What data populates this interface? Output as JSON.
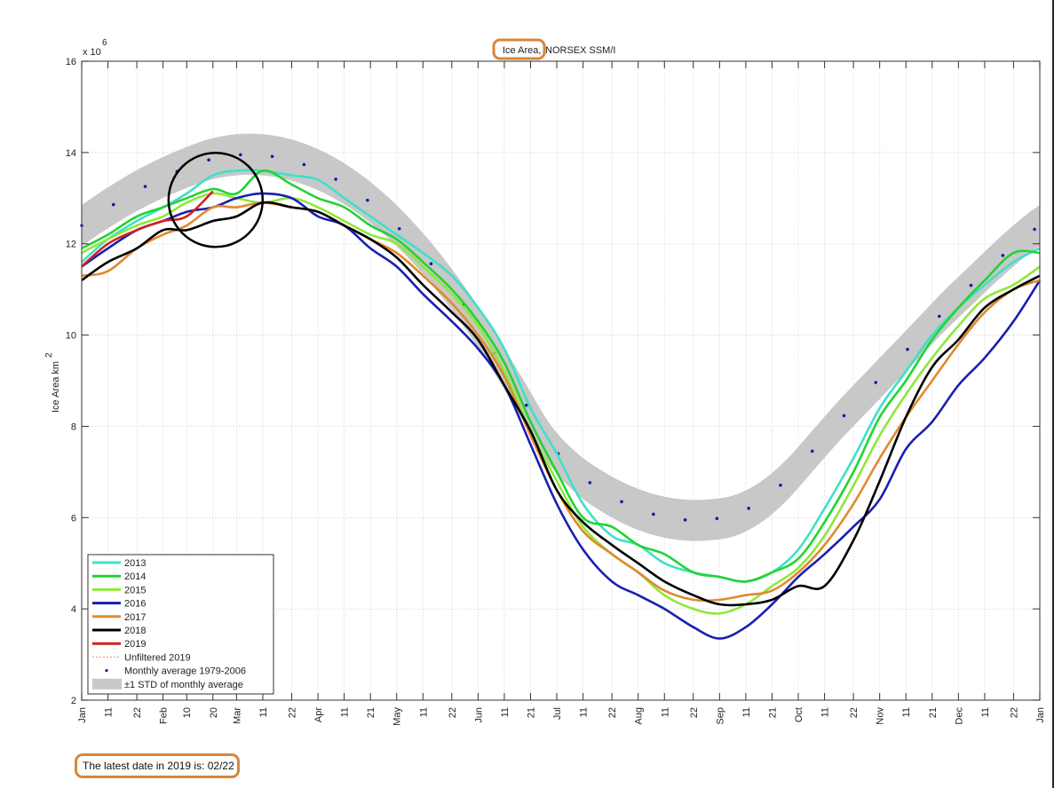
{
  "chart_data": {
    "type": "line",
    "title_highlight": "Ice Area,",
    "title_rest": "NORSEX SSM/I",
    "ylabel": "Ice Area km",
    "ylabel_sup": "2",
    "y_multiplier_base": "x 10",
    "y_multiplier_exp": "6",
    "ylim": [
      2,
      16
    ],
    "yticks": [
      2,
      4,
      6,
      8,
      10,
      12,
      14,
      16
    ],
    "xlim_day_of_year": [
      1,
      366
    ],
    "grid": true,
    "xticks": [
      {
        "day": 1,
        "label": "Jan"
      },
      {
        "day": 11,
        "label": "11"
      },
      {
        "day": 22,
        "label": "22"
      },
      {
        "day": 32,
        "label": "Feb"
      },
      {
        "day": 41,
        "label": "10"
      },
      {
        "day": 51,
        "label": "20"
      },
      {
        "day": 60,
        "label": "Mar"
      },
      {
        "day": 70,
        "label": "11"
      },
      {
        "day": 81,
        "label": "22"
      },
      {
        "day": 91,
        "label": "Apr"
      },
      {
        "day": 101,
        "label": "11"
      },
      {
        "day": 111,
        "label": "21"
      },
      {
        "day": 121,
        "label": "May"
      },
      {
        "day": 131,
        "label": "11"
      },
      {
        "day": 142,
        "label": "22"
      },
      {
        "day": 152,
        "label": "Jun"
      },
      {
        "day": 162,
        "label": "11"
      },
      {
        "day": 172,
        "label": "21"
      },
      {
        "day": 182,
        "label": "Jul"
      },
      {
        "day": 192,
        "label": "11"
      },
      {
        "day": 203,
        "label": "22"
      },
      {
        "day": 213,
        "label": "Aug"
      },
      {
        "day": 223,
        "label": "11"
      },
      {
        "day": 234,
        "label": "22"
      },
      {
        "day": 244,
        "label": "Sep"
      },
      {
        "day": 254,
        "label": "11"
      },
      {
        "day": 264,
        "label": "21"
      },
      {
        "day": 274,
        "label": "Oct"
      },
      {
        "day": 284,
        "label": "11"
      },
      {
        "day": 295,
        "label": "22"
      },
      {
        "day": 305,
        "label": "Nov"
      },
      {
        "day": 315,
        "label": "11"
      },
      {
        "day": 325,
        "label": "21"
      },
      {
        "day": 335,
        "label": "Dec"
      },
      {
        "day": 345,
        "label": "11"
      },
      {
        "day": 356,
        "label": "22"
      },
      {
        "day": 366,
        "label": "Jan"
      }
    ],
    "x_days": [
      1,
      11,
      22,
      32,
      41,
      51,
      60,
      70,
      81,
      91,
      101,
      111,
      121,
      131,
      142,
      152,
      162,
      172,
      182,
      192,
      203,
      213,
      223,
      234,
      244,
      254,
      264,
      274,
      284,
      295,
      305,
      315,
      325,
      335,
      345,
      356,
      366
    ],
    "series": [
      {
        "name": "2013",
        "color": "#3fe0c8",
        "values": [
          11.6,
          12.1,
          12.5,
          12.8,
          13.1,
          13.5,
          13.6,
          13.6,
          13.5,
          13.4,
          13.0,
          12.6,
          12.2,
          11.8,
          11.3,
          10.6,
          9.7,
          8.4,
          7.4,
          6.3,
          5.6,
          5.4,
          5.0,
          4.8,
          4.7,
          4.6,
          4.8,
          5.3,
          6.2,
          7.3,
          8.4,
          9.2,
          10.0,
          10.6,
          11.1,
          11.6,
          11.9
        ]
      },
      {
        "name": "2014",
        "color": "#22d433",
        "values": [
          11.9,
          12.2,
          12.6,
          12.8,
          13.0,
          13.2,
          13.1,
          13.6,
          13.3,
          13.0,
          12.8,
          12.4,
          12.1,
          11.6,
          11.0,
          10.3,
          9.4,
          8.1,
          7.0,
          6.0,
          5.8,
          5.4,
          5.2,
          4.8,
          4.7,
          4.6,
          4.8,
          5.1,
          5.9,
          7.0,
          8.2,
          9.0,
          9.9,
          10.6,
          11.2,
          11.8,
          11.8
        ]
      },
      {
        "name": "2015",
        "color": "#8ee83a",
        "values": [
          11.8,
          12.1,
          12.4,
          12.6,
          12.9,
          13.1,
          13.0,
          12.9,
          13.0,
          12.8,
          12.5,
          12.2,
          12.0,
          11.5,
          10.9,
          10.2,
          9.2,
          7.9,
          6.8,
          5.8,
          5.2,
          4.8,
          4.3,
          4.0,
          3.9,
          4.1,
          4.5,
          4.9,
          5.6,
          6.7,
          7.8,
          8.7,
          9.5,
          10.2,
          10.8,
          11.1,
          11.5
        ]
      },
      {
        "name": "2016",
        "color": "#1a1fb0",
        "values": [
          11.5,
          11.9,
          12.3,
          12.5,
          12.7,
          12.8,
          13.0,
          13.1,
          13.0,
          12.6,
          12.4,
          11.9,
          11.5,
          10.9,
          10.3,
          9.7,
          8.9,
          7.6,
          6.3,
          5.3,
          4.6,
          4.3,
          4.0,
          3.6,
          3.35,
          3.6,
          4.1,
          4.7,
          5.2,
          5.8,
          6.4,
          7.5,
          8.1,
          8.9,
          9.5,
          10.3,
          11.2
        ]
      },
      {
        "name": "2017",
        "color": "#e08a2e",
        "values": [
          11.3,
          11.4,
          11.9,
          12.2,
          12.4,
          12.8,
          12.8,
          12.9,
          12.8,
          12.7,
          12.4,
          12.1,
          11.8,
          11.3,
          10.7,
          10.0,
          9.1,
          7.8,
          6.6,
          5.7,
          5.2,
          4.8,
          4.4,
          4.2,
          4.2,
          4.3,
          4.4,
          4.8,
          5.4,
          6.3,
          7.3,
          8.2,
          9.0,
          9.8,
          10.5,
          11.0,
          11.2
        ]
      },
      {
        "name": "2018",
        "color": "#000000",
        "values": [
          11.2,
          11.6,
          11.9,
          12.3,
          12.3,
          12.5,
          12.6,
          12.9,
          12.8,
          12.7,
          12.4,
          12.1,
          11.7,
          11.1,
          10.5,
          9.9,
          8.9,
          7.9,
          6.6,
          5.9,
          5.4,
          5.0,
          4.6,
          4.3,
          4.1,
          4.1,
          4.2,
          4.5,
          4.5,
          5.5,
          6.8,
          8.2,
          9.3,
          9.9,
          10.6,
          11.0,
          11.3
        ]
      },
      {
        "name": "2019",
        "color": "#d42020",
        "values": [
          11.5,
          12.0,
          12.3,
          12.5,
          12.6,
          13.15
        ]
      }
    ],
    "unfiltered_2019": {
      "name": "Unfiltered 2019",
      "color": "#f08080"
    },
    "monthly_average": {
      "name": "Monthly average 1979-2006",
      "color": "#1a1aa8",
      "days": [
        1,
        10,
        20,
        30,
        40,
        50,
        60,
        70,
        80,
        90,
        100,
        110,
        120,
        130,
        140,
        150,
        160,
        170,
        180,
        190,
        200,
        210,
        220,
        230,
        240,
        250,
        260,
        270,
        280,
        290,
        300,
        310,
        320,
        330,
        340,
        350,
        360,
        366
      ],
      "values": [
        12.4,
        12.75,
        13.1,
        13.4,
        13.65,
        13.85,
        13.95,
        13.95,
        13.85,
        13.65,
        13.35,
        12.95,
        12.45,
        11.85,
        11.15,
        10.35,
        9.45,
        8.5,
        7.55,
        6.95,
        6.55,
        6.25,
        6.05,
        5.95,
        5.95,
        6.05,
        6.35,
        6.85,
        7.5,
        8.15,
        8.75,
        9.35,
        9.95,
        10.55,
        11.1,
        11.65,
        12.15,
        12.4
      ]
    },
    "std_band": {
      "name": "±1 STD of monthly average",
      "color": "#c8c8c8",
      "halfwidth": 0.45
    },
    "legend_position": "bottom-left",
    "annotation_circle_center": {
      "day": 51,
      "value": 13.0
    }
  },
  "footer": {
    "text": "The latest date in 2019 is: 02/22"
  }
}
